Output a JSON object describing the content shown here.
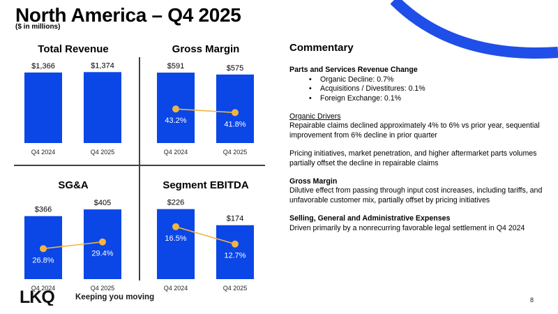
{
  "header": {
    "title": "North America – Q4 2025",
    "subtitle": "($ in millions)"
  },
  "colors": {
    "bar": "#0b46e6",
    "line": "#f2b441",
    "swoosh": "#1f4fe8",
    "text": "#000000"
  },
  "chart_data": [
    {
      "id": "total-revenue",
      "type": "bar",
      "title": "Total Revenue",
      "categories": [
        "Q4 2024",
        "Q4 2025"
      ],
      "values": [
        1366,
        1374
      ],
      "value_labels": [
        "$1,366",
        "$1,374"
      ],
      "ylim": [
        0,
        1500
      ]
    },
    {
      "id": "gross-margin",
      "type": "bar+line",
      "title": "Gross Margin",
      "categories": [
        "Q4 2024",
        "Q4 2025"
      ],
      "values": [
        591,
        575
      ],
      "value_labels": [
        "$591",
        "$575"
      ],
      "ylim": [
        0,
        650
      ],
      "line_values": [
        43.2,
        41.8
      ],
      "line_labels": [
        "43.2%",
        "41.8%"
      ],
      "line_ylim": [
        30,
        60
      ]
    },
    {
      "id": "sga",
      "type": "bar+line",
      "title": "SG&A",
      "categories": [
        "Q4 2024",
        "Q4 2025"
      ],
      "values": [
        366,
        405
      ],
      "value_labels": [
        "$366",
        "$405"
      ],
      "ylim": [
        0,
        450
      ],
      "line_values": [
        26.8,
        29.4
      ],
      "line_labels": [
        "26.8%",
        "29.4%"
      ],
      "line_ylim": [
        15,
        45
      ]
    },
    {
      "id": "segment-ebitda",
      "type": "bar+line",
      "title": "Segment EBITDA",
      "categories": [
        "Q4 2024",
        "Q4 2025"
      ],
      "values": [
        226,
        174
      ],
      "value_labels": [
        "$226",
        "$174"
      ],
      "ylim": [
        0,
        250
      ],
      "line_values": [
        16.5,
        12.7
      ],
      "line_labels": [
        "16.5%",
        "12.7%"
      ],
      "line_ylim": [
        5,
        22
      ]
    }
  ],
  "commentary": {
    "title": "Commentary",
    "parts": {
      "heading": "Parts and Services Revenue Change",
      "bullets": [
        "Organic Decline: 0.7%",
        "Acquisitions / Divestitures: 0.1%",
        "Foreign Exchange: 0.1%"
      ]
    },
    "organic": {
      "heading": "Organic Drivers",
      "text1": "Repairable claims declined approximately 4% to 6% vs prior year, sequential improvement from 6% decline in prior quarter",
      "text2": "Pricing initiatives, market penetration, and higher aftermarket parts volumes partially offset the decline in repairable claims"
    },
    "gross_margin": {
      "heading": "Gross Margin",
      "text": "Dilutive effect from passing through input cost increases, including tariffs, and unfavorable customer mix, partially offset by pricing initiatives"
    },
    "sga": {
      "heading": "Selling, General and Administrative Expenses",
      "text": "Driven primarily by a nonrecurring favorable legal settlement in Q4 2024"
    }
  },
  "footer": {
    "logo_text": "LKQ",
    "tagline": "Keeping you moving",
    "page_number": "8"
  }
}
